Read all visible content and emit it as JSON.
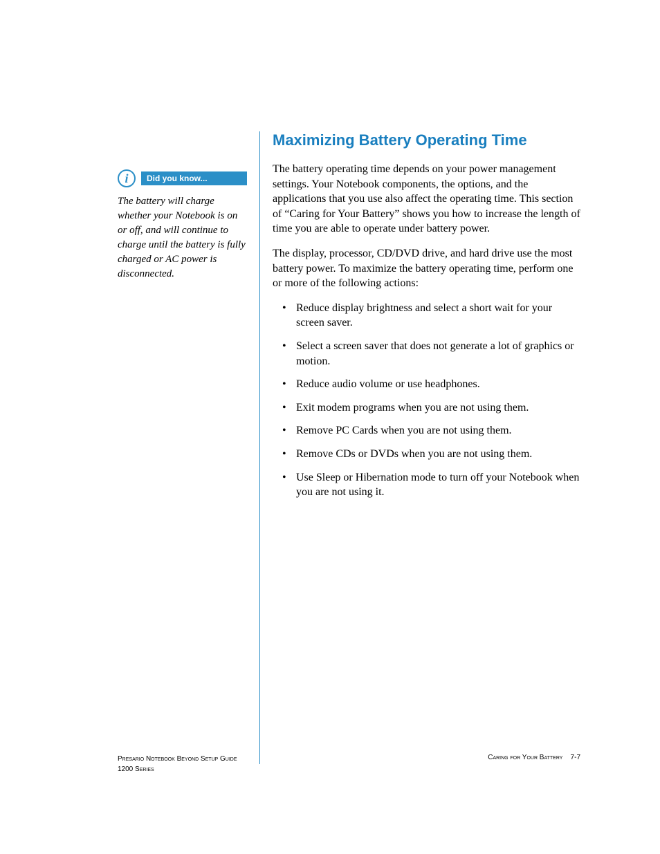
{
  "colors": {
    "accent": "#2b8fc7",
    "heading": "#1a7fbf",
    "text": "#000000",
    "background": "#ffffff",
    "callout_bar_text": "#ffffff"
  },
  "typography": {
    "heading_font": "Verdana, Arial, sans-serif",
    "heading_size_pt": 17,
    "body_font": "Georgia, Times New Roman, serif",
    "body_size_pt": 12,
    "callout_label_size_pt": 9,
    "footer_size_pt": 8
  },
  "sidebar": {
    "callout": {
      "icon_glyph": "i",
      "label": "Did you know...",
      "body": "The battery will charge whether your Notebook is on or off, and will continue to charge until the battery is fully charged or AC power is disconnected."
    }
  },
  "main": {
    "heading": "Maximizing Battery Operating Time",
    "paragraphs": [
      "The battery operating time depends on your power management settings. Your Notebook components, the options, and the applications that you use also affect the operating time. This section of “Caring for Your Battery” shows you how to increase the length of time you are able to operate under battery power.",
      "The display, processor, CD/DVD drive, and hard drive use the most battery power. To maximize the battery operating time, perform one or more of the following actions:"
    ],
    "bullets": [
      "Reduce display brightness and select a short wait for your screen saver.",
      "Select a screen saver that does not generate a lot of graphics or motion.",
      "Reduce audio volume or use headphones.",
      "Exit modem programs when you are not using them.",
      "Remove PC Cards when you are not using them.",
      "Remove CDs or DVDs when you are not using them.",
      "Use Sleep or Hibernation mode to turn off your Notebook when you are not using it."
    ]
  },
  "footer": {
    "left_line1": "Presario Notebook Beyond Setup Guide",
    "left_line2": "1200 Series",
    "right_section": "Caring for Your Battery",
    "page_number": "7-7"
  }
}
